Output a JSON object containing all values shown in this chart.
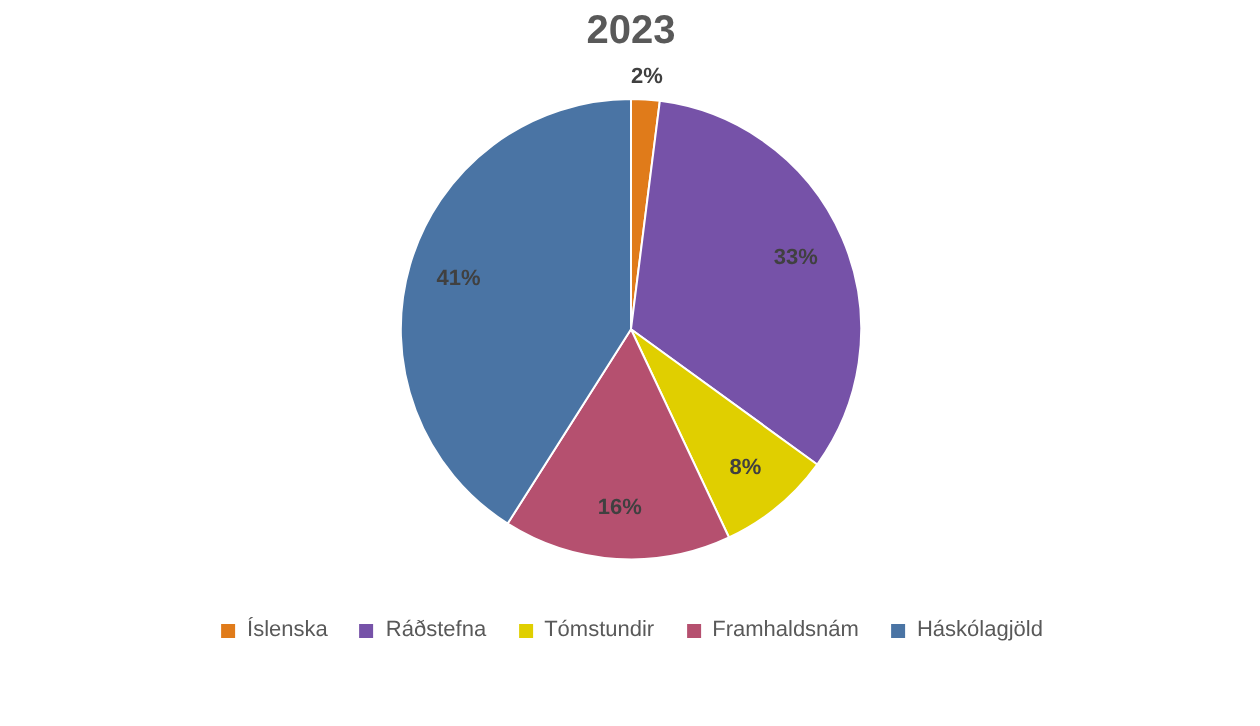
{
  "chart_data": {
    "type": "pie",
    "title": "2023",
    "categories": [
      "Íslenska",
      "Ráðstefna",
      "Tómstundir",
      "Framhaldsnám",
      "Háskólagjöld"
    ],
    "values": [
      2,
      33,
      8,
      16,
      41
    ],
    "value_labels": [
      "2%",
      "33%",
      "8%",
      "16%",
      "41%"
    ],
    "colors": [
      "#e07b1a",
      "#7652a8",
      "#e0cf00",
      "#b5506f",
      "#4a74a4"
    ],
    "legend": "bottom"
  }
}
